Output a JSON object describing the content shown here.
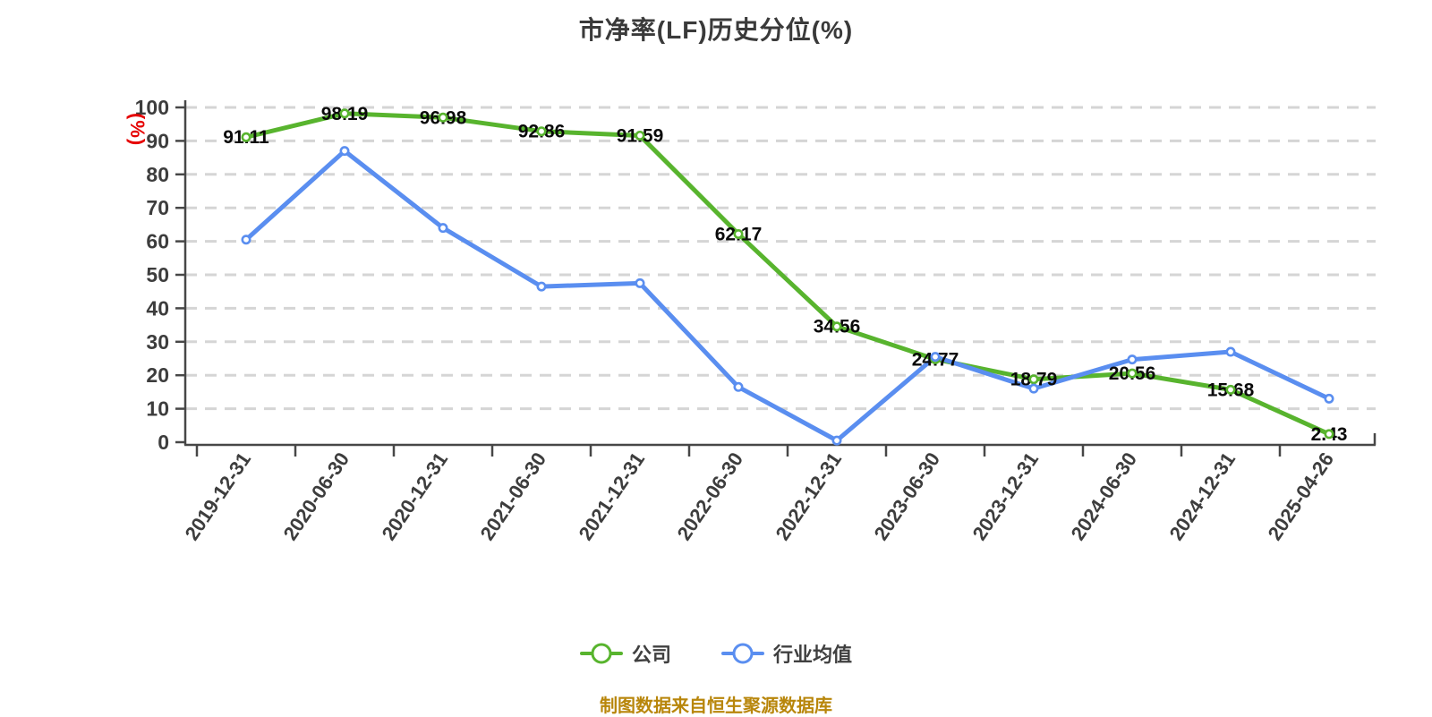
{
  "title": "市净率(LF)历史分位(%)",
  "footer": {
    "caption": "制图数据来自恒生聚源数据库",
    "color": "#b8860b"
  },
  "colors": {
    "company_green": "#58b42e",
    "industry_blue": "#5a8ef0",
    "axis_label_red": "#e60000",
    "axis_line": "#474747",
    "tick_text": "#3d3d3d",
    "gridline": "#d5d5d5",
    "data_label": "#0a0a0a"
  },
  "chart_data": {
    "type": "line",
    "title": "市净率(LF)历史分位(%)",
    "y_unit_label": "(%)",
    "categories": [
      "2019-12-31",
      "2020-06-30",
      "2020-12-31",
      "2021-06-30",
      "2021-12-31",
      "2022-06-30",
      "2022-12-31",
      "2023-06-30",
      "2023-12-31",
      "2024-06-30",
      "2024-12-31",
      "2025-04-26"
    ],
    "series": [
      {
        "name": "公司",
        "color": "#58b42e",
        "show_labels": true,
        "values": [
          91.11,
          98.19,
          96.98,
          92.86,
          91.59,
          62.17,
          34.56,
          24.77,
          18.79,
          20.56,
          15.68,
          2.43
        ]
      },
      {
        "name": "行业均值",
        "color": "#5a8ef0",
        "show_labels": false,
        "values": [
          60.5,
          87,
          64,
          46.5,
          47.5,
          16.5,
          0.5,
          25.5,
          16,
          24.7,
          27,
          13
        ]
      }
    ],
    "ylim": [
      0,
      100
    ],
    "yticks": [
      0,
      10,
      20,
      30,
      40,
      50,
      60,
      70,
      80,
      90,
      100
    ],
    "grid": "dashed-horizontal",
    "legend_position": "bottom"
  }
}
